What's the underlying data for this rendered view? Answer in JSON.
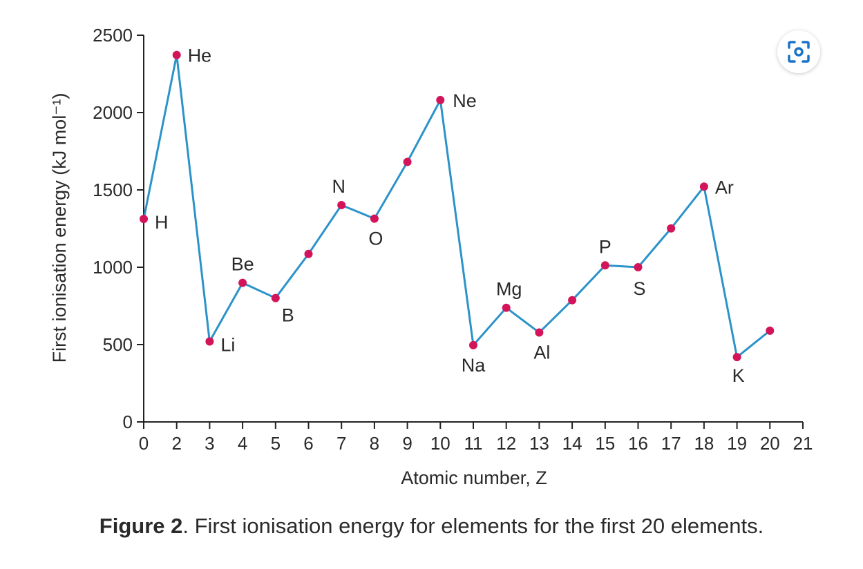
{
  "colors": {
    "line": "#2b93c9",
    "point": "#d4145a",
    "zoom_icon": "#1a73c8"
  },
  "zoom_button": {
    "icon": "focus-zoom-icon"
  },
  "caption": {
    "label": "Figure 2",
    "text": ". First ionisation energy for elements for the first 20 elements."
  },
  "chart_data": {
    "type": "line",
    "title": "",
    "xlabel": "Atomic number, Z",
    "ylabel": "First ionisation energy (kJ mol⁻¹)",
    "x_tick_labels": [
      "0",
      "2",
      "3",
      "4",
      "5",
      "6",
      "7",
      "8",
      "9",
      "10",
      "11",
      "12",
      "13",
      "14",
      "15",
      "16",
      "17",
      "18",
      "19",
      "20",
      "21"
    ],
    "y_ticks": [
      0,
      500,
      1000,
      1500,
      2000,
      2500
    ],
    "ylim": [
      0,
      2500
    ],
    "grid": false,
    "series": [
      {
        "name": "First ionisation energy",
        "points": [
          {
            "slot": 0,
            "y": 1312,
            "label": "H"
          },
          {
            "slot": 1,
            "y": 2372,
            "label": "He"
          },
          {
            "slot": 2,
            "y": 520,
            "label": "Li"
          },
          {
            "slot": 3,
            "y": 899,
            "label": "Be"
          },
          {
            "slot": 4,
            "y": 801,
            "label": "B"
          },
          {
            "slot": 5,
            "y": 1086,
            "label": ""
          },
          {
            "slot": 6,
            "y": 1402,
            "label": "N"
          },
          {
            "slot": 7,
            "y": 1314,
            "label": "O"
          },
          {
            "slot": 8,
            "y": 1681,
            "label": ""
          },
          {
            "slot": 9,
            "y": 2081,
            "label": "Ne"
          },
          {
            "slot": 10,
            "y": 496,
            "label": "Na"
          },
          {
            "slot": 11,
            "y": 738,
            "label": "Mg"
          },
          {
            "slot": 12,
            "y": 578,
            "label": "Al"
          },
          {
            "slot": 13,
            "y": 787,
            "label": ""
          },
          {
            "slot": 14,
            "y": 1012,
            "label": "P"
          },
          {
            "slot": 15,
            "y": 1000,
            "label": "S"
          },
          {
            "slot": 16,
            "y": 1251,
            "label": ""
          },
          {
            "slot": 17,
            "y": 1521,
            "label": "Ar"
          },
          {
            "slot": 18,
            "y": 419,
            "label": "K"
          },
          {
            "slot": 19,
            "y": 590,
            "label": ""
          }
        ]
      }
    ]
  }
}
